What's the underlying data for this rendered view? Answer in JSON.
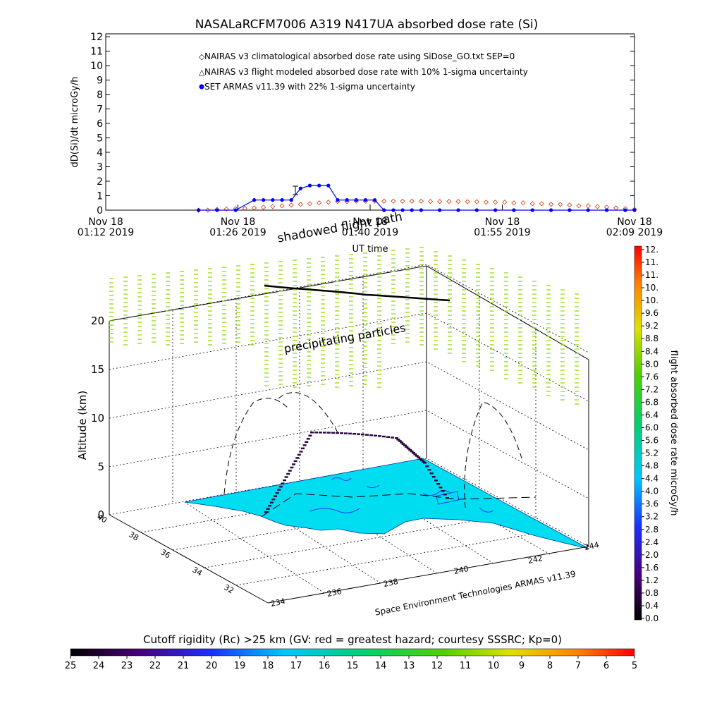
{
  "top_chart": {
    "title": "NASALaRCFM7006  A319 N417UA absorbed dose rate (Si)",
    "ylabel": "dD(Si)/dt microGy/h",
    "xlabel": "UT time",
    "y_ticks": [
      "0",
      "1",
      "2",
      "3",
      "4",
      "5",
      "6",
      "7",
      "8",
      "9",
      "10",
      "11",
      "12"
    ],
    "x_ticks": [
      {
        "line1": "Nov 18",
        "line2": "01:12 2019"
      },
      {
        "line1": "Nov 18",
        "line2": "01:26 2019"
      },
      {
        "line1": "Nov 18",
        "line2": "01:40 2019"
      },
      {
        "line1": "Nov 18",
        "line2": "01:55 2019"
      },
      {
        "line1": "Nov 18",
        "line2": "02:09 2019"
      }
    ],
    "legend": [
      "NAIRAS v3 climatological absorbed dose rate using SiDose_GO.txt SEP=0",
      "NAIRAS v3 flight modeled absorbed dose rate with 10% 1-sigma uncertainty",
      "SET ARMAS v11.39 with 22% 1-sigma uncertainty"
    ],
    "colors": {
      "nairas_clim": "#cc3300",
      "nairas_flight": "#000000",
      "armas": "#0000ff"
    }
  },
  "chart_data": [
    {
      "type": "line",
      "title": "NASALaRCFM7006  A319 N417UA absorbed dose rate (Si)",
      "xlabel": "UT time",
      "ylabel": "dD(Si)/dt microGy/h",
      "xlim": [
        "01:12",
        "02:09"
      ],
      "ylim": [
        0,
        12
      ],
      "legend_position": "top-center",
      "series": [
        {
          "name": "NAIRAS v3 climatological absorbed dose rate using SiDose_GO.txt SEP=0",
          "x": [
            "01:22",
            "01:23",
            "01:24",
            "01:25",
            "01:26",
            "01:27",
            "01:28",
            "01:29",
            "01:30",
            "01:31",
            "01:32",
            "01:33",
            "01:34",
            "01:35",
            "01:36",
            "01:37",
            "01:38",
            "01:39",
            "01:40",
            "01:41",
            "01:42",
            "01:43",
            "01:44",
            "01:45",
            "01:46",
            "01:47",
            "01:48",
            "01:49",
            "01:50",
            "01:51",
            "01:52",
            "01:53",
            "01:54",
            "01:55",
            "01:56",
            "01:57",
            "01:58",
            "01:59",
            "02:00",
            "02:01",
            "02:02",
            "02:03",
            "02:04",
            "02:05",
            "02:06",
            "02:07",
            "02:08",
            "02:09"
          ],
          "values": [
            0,
            0,
            0.05,
            0.08,
            0.1,
            0.12,
            0.15,
            0.2,
            0.25,
            0.3,
            0.35,
            0.4,
            0.45,
            0.5,
            0.55,
            0.6,
            0.6,
            0.62,
            0.62,
            0.62,
            0.62,
            0.62,
            0.62,
            0.62,
            0.62,
            0.6,
            0.6,
            0.6,
            0.6,
            0.58,
            0.58,
            0.55,
            0.55,
            0.55,
            0.5,
            0.5,
            0.45,
            0.45,
            0.4,
            0.4,
            0.35,
            0.3,
            0.3,
            0.25,
            0.2,
            0.15,
            0.1,
            0.05
          ]
        },
        {
          "name": "SET ARMAS v11.39 with 22% 1-sigma uncertainty",
          "x": [
            "01:22",
            "01:24",
            "01:26",
            "01:28",
            "01:29",
            "01:30",
            "01:31",
            "01:32",
            "01:33",
            "01:34",
            "01:35",
            "01:36",
            "01:37",
            "01:38",
            "01:39",
            "01:40",
            "01:41",
            "01:42",
            "01:43",
            "01:44",
            "01:45",
            "01:46",
            "01:48",
            "01:50",
            "01:52",
            "01:54",
            "01:56",
            "01:58",
            "02:00",
            "02:02",
            "02:04",
            "02:06",
            "02:08",
            "02:09"
          ],
          "values": [
            0,
            0,
            0,
            0.7,
            0.7,
            0.7,
            0.7,
            0.7,
            1.5,
            1.7,
            1.7,
            1.7,
            0.7,
            0.7,
            0.7,
            0.7,
            0.7,
            0,
            0,
            0,
            0,
            0,
            0,
            0,
            0,
            0,
            0,
            0,
            0,
            0,
            0,
            0,
            0,
            0
          ]
        }
      ]
    },
    {
      "type": "scatter",
      "title": "",
      "xlabel": "Space Environment Technologies ARMAS v11.39",
      "ylabel": "Altitude (km)",
      "x_ticks": [
        "234",
        "236",
        "238",
        "240",
        "242",
        "244"
      ],
      "y_ticks": [
        "40",
        "38",
        "36",
        "34",
        "32"
      ],
      "z_ticks": [
        "0",
        "5",
        "10",
        "15",
        "20"
      ],
      "annotations": [
        "shadowed flight path",
        "precipitating particles"
      ],
      "colorbar": {
        "label": "flight absorbed dose rate microGy/h",
        "range": [
          0,
          12
        ],
        "ticks": [
          "12.",
          "11.",
          "11.",
          "10.",
          "10.",
          "9.6",
          "9.2",
          "8.8",
          "8.4",
          "8.0",
          "7.6",
          "7.2",
          "6.8",
          "6.4",
          "6.0",
          "5.6",
          "5.2",
          "4.8",
          "4.4",
          "4.0",
          "3.6",
          "3.2",
          "2.8",
          "2.4",
          "2.0",
          "1.6",
          "1.2",
          "0.8",
          "0.4",
          "0.0"
        ]
      }
    }
  ],
  "scene3d": {
    "zlabel": "Altitude (km)",
    "xlabel": "Space Environment Technologies ARMAS v11.39",
    "annot_shadow": "shadowed flight path",
    "annot_precip": "precipitating particles",
    "z_ticks": [
      "0",
      "5",
      "10",
      "15",
      "20"
    ],
    "lat_ticks": [
      "40",
      "38",
      "36",
      "34",
      "32"
    ],
    "lon_ticks": [
      "234",
      "236",
      "238",
      "240",
      "242",
      "244"
    ],
    "surface_color": "#00ddf0",
    "dot_color": "#99dd22"
  },
  "colorbar": {
    "label": "flight absorbed dose rate microGy/h",
    "ticks": [
      "12.",
      "11.",
      "11.",
      "10.",
      "10.",
      "9.6",
      "9.2",
      "8.8",
      "8.4",
      "8.0",
      "7.6",
      "7.2",
      "6.8",
      "6.4",
      "6.0",
      "5.6",
      "5.2",
      "4.8",
      "4.4",
      "4.0",
      "3.6",
      "3.2",
      "2.8",
      "2.4",
      "2.0",
      "1.6",
      "1.2",
      "0.8",
      "0.4",
      "0.0"
    ]
  },
  "bottom_bar": {
    "title": "Cutoff rigidity (Rc) >25 km (GV: red = greatest hazard; courtesy SSSRC; Kp=0)",
    "ticks": [
      "25",
      "24",
      "23",
      "22",
      "21",
      "20",
      "19",
      "18",
      "17",
      "16",
      "15",
      "14",
      "13",
      "12",
      "11",
      "10",
      "9",
      "8",
      "7",
      "6",
      "5"
    ]
  }
}
